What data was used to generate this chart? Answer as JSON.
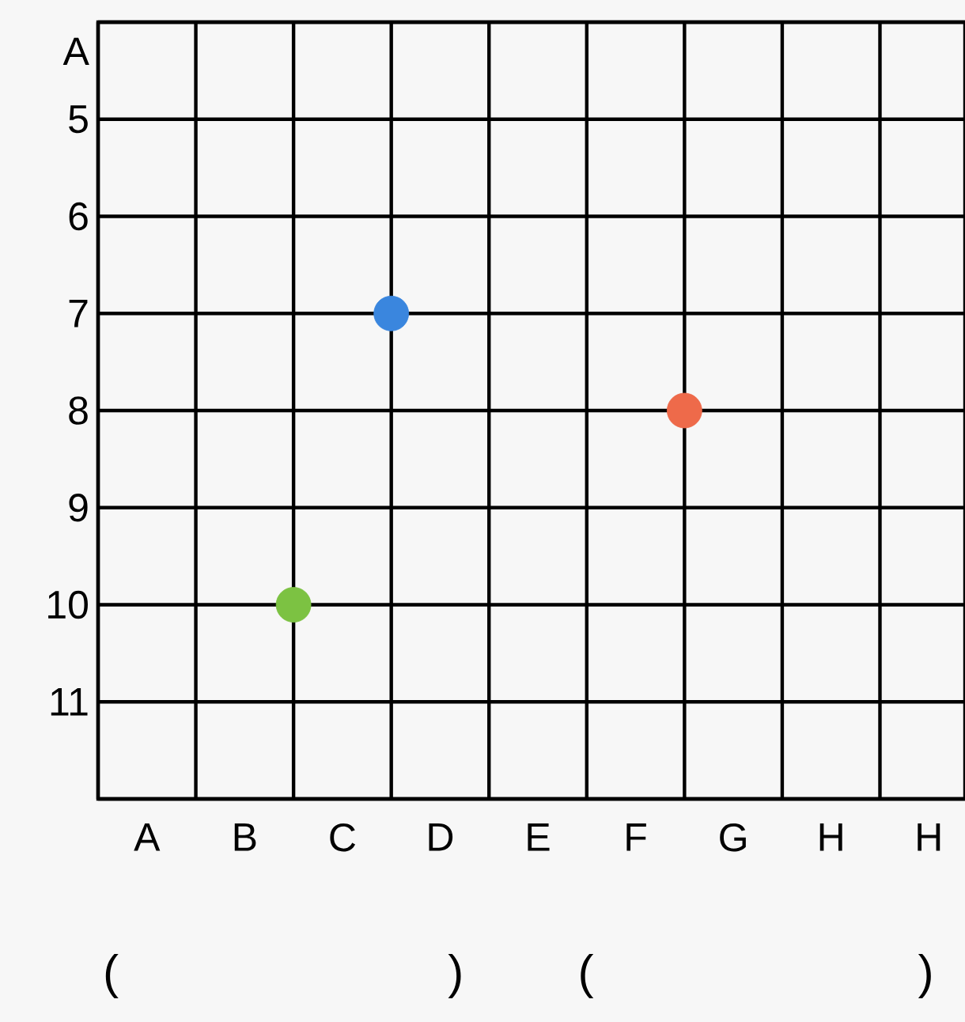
{
  "chart_data": {
    "type": "scatter",
    "categories": [
      null,
      "A",
      null,
      "B",
      null,
      "C",
      null,
      "D",
      null,
      "E",
      null,
      "F",
      null,
      "G",
      null,
      "H",
      null,
      "H"
    ],
    "values": [
      null,
      null,
      null,
      null,
      10,
      null,
      7,
      null,
      null,
      null,
      null,
      null,
      8,
      null,
      null,
      null,
      null,
      null
    ],
    "colors": [
      null,
      null,
      null,
      null,
      "#7cc242",
      null,
      "#3a86de",
      null,
      null,
      null,
      null,
      null,
      "#ee6a4a",
      null,
      null,
      null,
      null,
      null
    ],
    "marker": "circle",
    "ylim": [
      12,
      4
    ],
    "yticks": [
      {
        "value": 4,
        "label": null
      },
      {
        "value": 4.3,
        "label": "A"
      },
      5,
      6,
      7,
      8,
      9,
      10,
      11,
      {
        "value": 12,
        "label": null
      }
    ],
    "grid": true,
    "annotations": [
      "(",
      ")",
      "(",
      ")"
    ]
  }
}
